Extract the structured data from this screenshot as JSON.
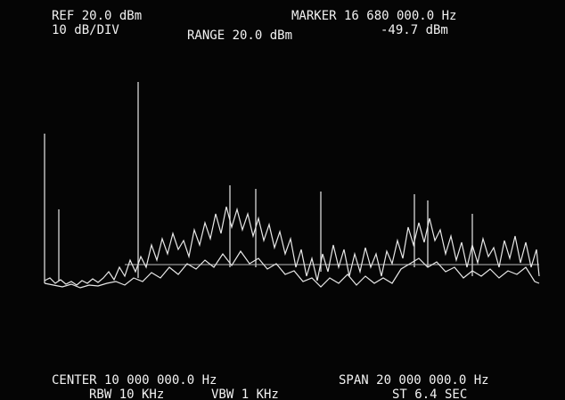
{
  "header": {
    "ref": "REF 20.0 dBm",
    "scale": "10 dB/DIV",
    "range": "RANGE 20.0 dBm",
    "marker": "MARKER 16 680 000.0 Hz",
    "marker_level": "-49.7 dBm"
  },
  "footer": {
    "center": "CENTER 10 000 000.0 Hz",
    "span": "SPAN 20 000 000.0 Hz",
    "rbw": "RBW 10 KHz",
    "vbw": "VBW 1 KHz",
    "sweep_time": "ST 6.4 SEC"
  }
}
